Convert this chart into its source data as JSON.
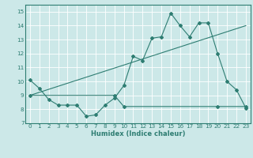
{
  "xlabel": "Humidex (Indice chaleur)",
  "bg_color": "#cce8e8",
  "grid_color": "#ffffff",
  "line_color": "#2e7d72",
  "xlim": [
    -0.5,
    23.5
  ],
  "ylim": [
    7.0,
    15.5
  ],
  "yticks": [
    7,
    8,
    9,
    10,
    11,
    12,
    13,
    14,
    15
  ],
  "xticks": [
    0,
    1,
    2,
    3,
    4,
    5,
    6,
    7,
    8,
    9,
    10,
    11,
    12,
    13,
    14,
    15,
    16,
    17,
    18,
    19,
    20,
    21,
    22,
    23
  ],
  "line1_x": [
    0,
    1,
    2,
    3,
    4,
    5,
    6,
    7,
    8,
    9,
    10,
    11,
    12,
    13,
    14,
    15,
    16,
    17,
    18,
    19,
    20,
    21,
    22,
    23
  ],
  "line1_y": [
    10.1,
    9.5,
    8.7,
    8.3,
    8.3,
    8.3,
    7.5,
    7.6,
    8.3,
    8.8,
    9.7,
    11.8,
    11.5,
    13.1,
    13.2,
    14.9,
    14.0,
    13.2,
    14.2,
    14.2,
    12.0,
    10.0,
    9.4,
    8.1
  ],
  "line2_x": [
    0,
    23
  ],
  "line2_y": [
    9.0,
    14.0
  ],
  "line3_x": [
    0,
    9,
    10,
    20,
    23
  ],
  "line3_y": [
    9.0,
    9.0,
    8.2,
    8.2,
    8.2
  ],
  "xlabel_fontsize": 6.0,
  "tick_fontsize": 5.2
}
